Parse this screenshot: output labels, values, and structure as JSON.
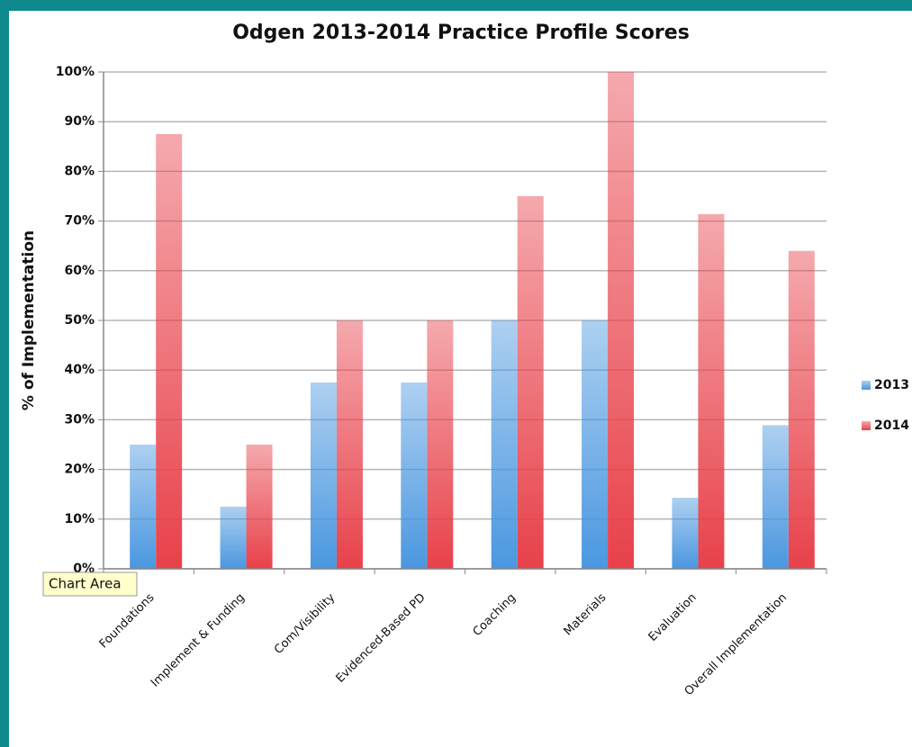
{
  "chart_data": {
    "type": "bar",
    "title": "Odgen 2013-2014 Practice Profile Scores",
    "y_label": "% of Implementation",
    "tooltip": "Chart Area",
    "categories": [
      "Foundations",
      "Implement & Funding",
      "Com/Visibility",
      "Evidenced-Based PD",
      "Coaching",
      "Materials",
      "Evaluation",
      "Overall Implementation"
    ],
    "series": [
      {
        "name": "2013",
        "color": "#4a97e0",
        "values": [
          25,
          12.5,
          37.5,
          37.5,
          50,
          50,
          14.3,
          28.9
        ]
      },
      {
        "name": "2014",
        "color": "#e8414a",
        "values": [
          87.5,
          25,
          50,
          50,
          75,
          100,
          71.4,
          64
        ]
      }
    ],
    "ylim": [
      0,
      100
    ],
    "yticks": [
      {
        "value": 0,
        "label": "0%"
      },
      {
        "value": 10,
        "label": "10%"
      },
      {
        "value": 20,
        "label": "20%"
      },
      {
        "value": 30,
        "label": "30%"
      },
      {
        "value": 40,
        "label": "40%"
      },
      {
        "value": 50,
        "label": "50%"
      },
      {
        "value": 60,
        "label": "60%"
      },
      {
        "value": 70,
        "label": "70%"
      },
      {
        "value": 80,
        "label": "80%"
      },
      {
        "value": 90,
        "label": "90%"
      },
      {
        "value": 100,
        "label": "100%"
      }
    ],
    "grid": true,
    "legend": "right"
  }
}
